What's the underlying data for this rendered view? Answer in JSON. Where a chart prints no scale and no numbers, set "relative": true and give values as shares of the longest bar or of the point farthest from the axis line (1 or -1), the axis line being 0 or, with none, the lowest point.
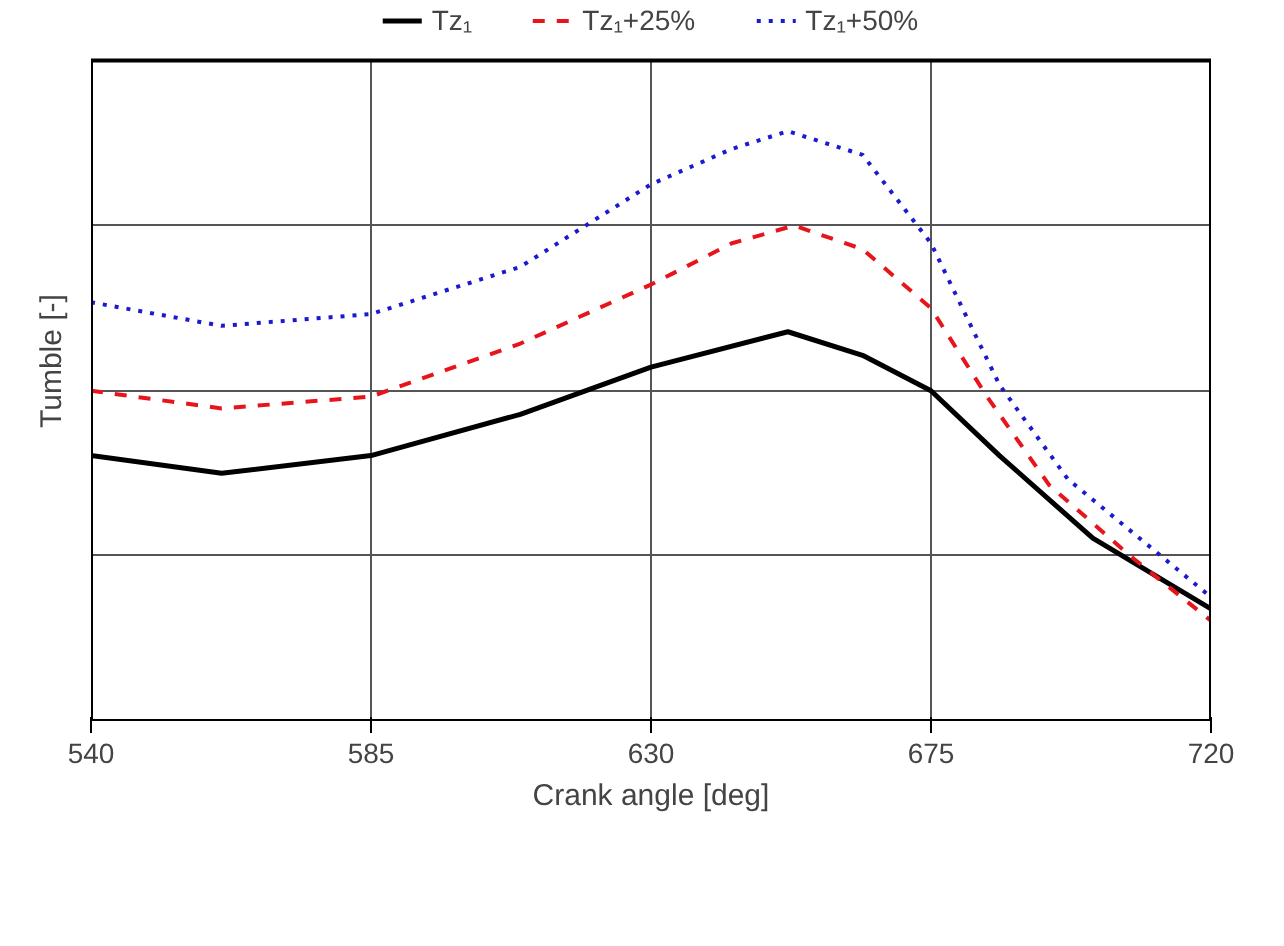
{
  "chart_data": {
    "type": "line",
    "relative": true,
    "xlabel": "Crank angle [deg]",
    "ylabel": "Tumble [-]",
    "xlim": [
      540,
      720
    ],
    "xticks": [
      540,
      585,
      630,
      675,
      720
    ],
    "grid": true,
    "legend": "top",
    "series": [
      {
        "name": "Tz₁",
        "color": "#000000",
        "line_style": "solid",
        "x": [
          540,
          561,
          585,
          609,
          630,
          652,
          664,
          675,
          686,
          701,
          720
        ],
        "values": [
          0.45,
          0.42,
          0.45,
          0.52,
          0.6,
          0.66,
          0.62,
          0.56,
          0.45,
          0.31,
          0.19
        ]
      },
      {
        "name": "Tz₁+25%",
        "color": "#e8141b",
        "line_style": "dashed",
        "x": [
          540,
          561,
          585,
          609,
          630,
          643,
          653,
          664,
          675,
          684,
          694,
          707,
          720
        ],
        "values": [
          0.56,
          0.53,
          0.55,
          0.64,
          0.74,
          0.81,
          0.84,
          0.8,
          0.7,
          0.55,
          0.4,
          0.28,
          0.17
        ]
      },
      {
        "name": "Tz₁+50%",
        "color": "#1a1ad0",
        "line_style": "dotted",
        "x": [
          540,
          561,
          585,
          609,
          630,
          643,
          652,
          664,
          675,
          686,
          697,
          720
        ],
        "values": [
          0.71,
          0.67,
          0.69,
          0.77,
          0.91,
          0.97,
          1.0,
          0.96,
          0.81,
          0.57,
          0.41,
          0.21
        ]
      }
    ]
  }
}
